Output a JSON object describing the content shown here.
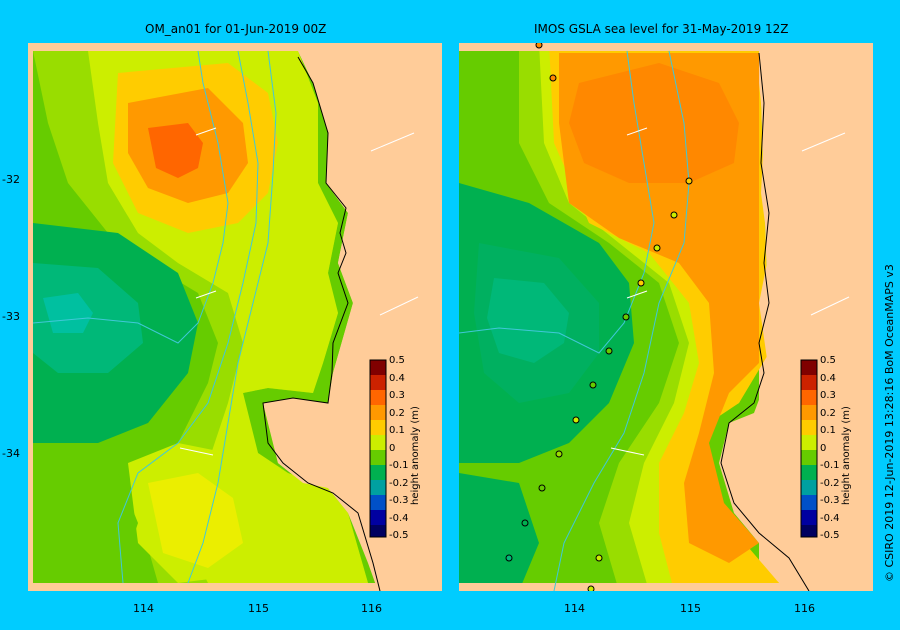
{
  "colors": {
    "background": "#00ccff",
    "land": "#ffcc99",
    "coast": "#000000",
    "river": "#40c8d8"
  },
  "left_panel": {
    "title": "OM_an01  for 01-Jun-2019 00Z"
  },
  "right_panel": {
    "title": "IMOS GSLA sea level  for 31-May-2019 12Z"
  },
  "y_ticks": [
    "-32",
    "-33",
    "-34"
  ],
  "x_ticks": [
    "114",
    "115",
    "116"
  ],
  "colorbar": {
    "title": "height anomaly (m)",
    "labels": [
      "0.5",
      "0.4",
      "0.3",
      "0.2",
      "0.1",
      "0",
      "-0.1",
      "-0.2",
      "-0.3",
      "-0.4",
      "-0.5"
    ],
    "colors": [
      "#800000",
      "#cc2200",
      "#ff6600",
      "#ff9900",
      "#ffcc00",
      "#ccee00",
      "#66cc00",
      "#00b050",
      "#00a0a0",
      "#0050c8",
      "#0000a0",
      "#000060"
    ]
  },
  "credit": "© CSIRO 2019   12-Jun-2019 13:28:16 BoM OceanMAPS v3"
}
